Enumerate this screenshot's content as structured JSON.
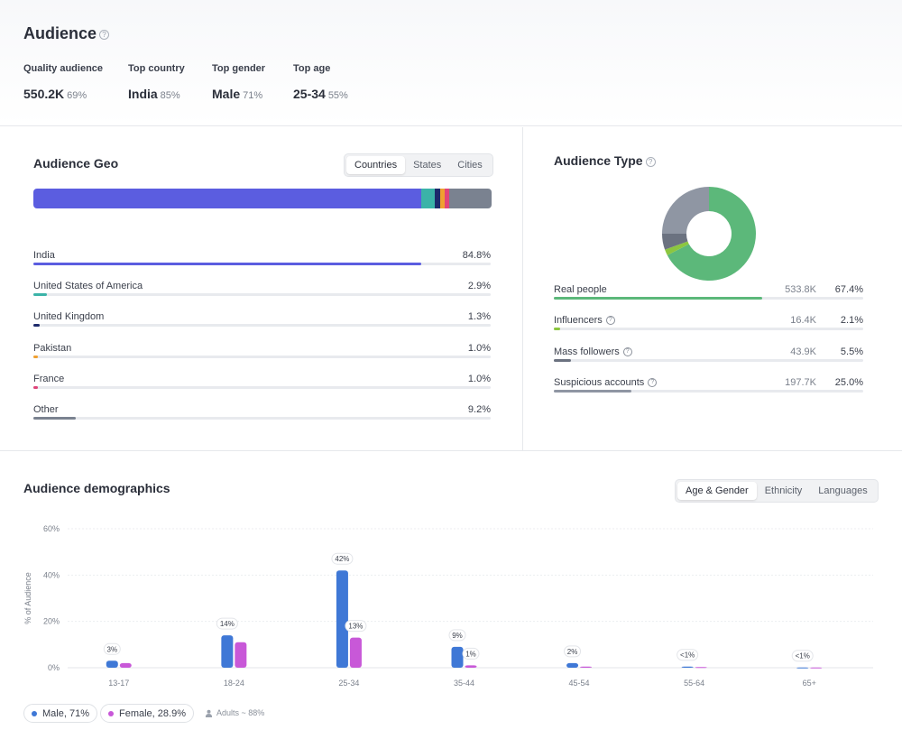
{
  "header": {
    "title": "Audience",
    "stats": [
      {
        "label": "Quality audience",
        "value": "550.2K",
        "sub": "69%"
      },
      {
        "label": "Top country",
        "value": "India",
        "sub": "85%"
      },
      {
        "label": "Top gender",
        "value": "Male",
        "sub": "71%"
      },
      {
        "label": "Top age",
        "value": "25-34",
        "sub": "55%"
      }
    ]
  },
  "geo": {
    "title": "Audience Geo",
    "tabs": [
      "Countries",
      "States",
      "Cities"
    ],
    "active_tab": "Countries",
    "rows": [
      {
        "name": "India",
        "pct_label": "84.8%",
        "pct": 84.8,
        "color": "#5b5de0"
      },
      {
        "name": "United States of America",
        "pct_label": "2.9%",
        "pct": 2.9,
        "color": "#3bb3a8"
      },
      {
        "name": "United Kingdom",
        "pct_label": "1.3%",
        "pct": 1.3,
        "color": "#1d2a6b"
      },
      {
        "name": "Pakistan",
        "pct_label": "1.0%",
        "pct": 1.0,
        "color": "#f0a030"
      },
      {
        "name": "France",
        "pct_label": "1.0%",
        "pct": 1.0,
        "color": "#e0447a"
      },
      {
        "name": "Other",
        "pct_label": "9.2%",
        "pct": 9.2,
        "color": "#7a8290"
      }
    ]
  },
  "type": {
    "title": "Audience Type",
    "rows": [
      {
        "name": "Real people",
        "count": "533.8K",
        "pct_label": "67.4%",
        "pct": 67.4,
        "color": "#5cb87a",
        "help": false
      },
      {
        "name": "Influencers",
        "count": "16.4K",
        "pct_label": "2.1%",
        "pct": 2.1,
        "color": "#8cc63f",
        "help": true
      },
      {
        "name": "Mass followers",
        "count": "43.9K",
        "pct_label": "5.5%",
        "pct": 5.5,
        "color": "#6b7280",
        "help": true
      },
      {
        "name": "Suspicious accounts",
        "count": "197.7K",
        "pct_label": "25.0%",
        "pct": 25.0,
        "color": "#8f96a3",
        "help": true
      }
    ]
  },
  "demographics": {
    "title": "Audience demographics",
    "tabs": [
      "Age & Gender",
      "Ethnicity",
      "Languages"
    ],
    "active_tab": "Age & Gender",
    "legend": {
      "male": "Male, 71%",
      "female": "Female, 28.9%",
      "adults": "Adults ~ 88%"
    },
    "male_color": "#3f78d6",
    "female_color": "#c858d8"
  },
  "chart_data": {
    "type": "bar",
    "ylabel": "% of Audience",
    "ylim": [
      0,
      60
    ],
    "yticks": [
      "0%",
      "20%",
      "40%",
      "60%"
    ],
    "categories": [
      "13-17",
      "18-24",
      "25-34",
      "35-44",
      "45-54",
      "55-64",
      "65+"
    ],
    "series": [
      {
        "name": "Male",
        "values": [
          3,
          14,
          42,
          9,
          2,
          0.5,
          0.1
        ]
      },
      {
        "name": "Female",
        "values": [
          2,
          11,
          13,
          1,
          0.5,
          0.3,
          0.1
        ]
      }
    ],
    "labels": [
      "3%",
      "14%",
      "42%",
      "9%",
      "2%",
      "<1%",
      "<1%"
    ],
    "female_labels": [
      "",
      "",
      "13%",
      "1%",
      "",
      "",
      ""
    ]
  }
}
